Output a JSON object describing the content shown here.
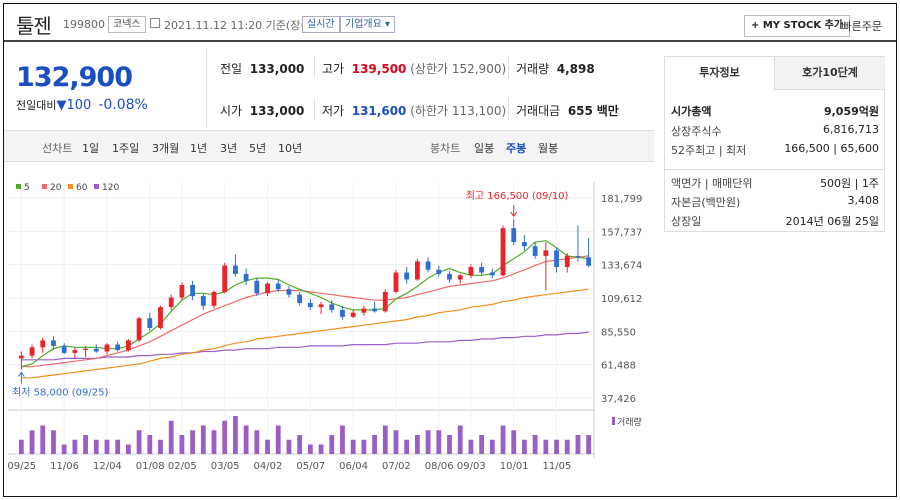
{
  "header": {
    "name": "툴젠",
    "code": "199800",
    "market": "코넥스",
    "datetime": "2021.11.12 11:20",
    "datetime_suffix": "기준(장중)",
    "realtime": "실시간",
    "company_overview": "기업개요 ▾",
    "mystock_btn": "+ MY STOCK 추가",
    "quick_order": "빠른주문"
  },
  "quote": {
    "price": "132,900",
    "change_label": "전일대비",
    "change_arrow": "▼",
    "change_value": "100",
    "change_pct": "-0.08%"
  },
  "info": {
    "prev_label": "전일",
    "prev": "133,000",
    "high_label": "고가",
    "high": "139,500",
    "upper_limit": "(상한가 152,900)",
    "vol_label": "거래량",
    "vol": "4,898",
    "open_label": "시가",
    "open": "133,000",
    "low_label": "저가",
    "low": "131,600",
    "lower_limit": "(하한가 113,100)",
    "amt_label": "거래대금",
    "amt": "655",
    "amt_unit": "백만"
  },
  "periods": {
    "chart_label": "선차트",
    "items": [
      "1일",
      "1주일",
      "3개월",
      "1년",
      "3년",
      "5년",
      "10년"
    ],
    "candle_label": "봉차트",
    "candle_items": [
      "일봉",
      "주봉",
      "월봉"
    ],
    "selected": "주봉"
  },
  "tabs": {
    "invest": "투자정보",
    "hoga": "호가10단계"
  },
  "invest_rows": [
    {
      "label": "시가총액",
      "value": "9,059억원"
    },
    {
      "label": "상장주식수",
      "value": "6,816,713"
    },
    {
      "label": "52주최고 | 최저",
      "value": "166,500 | 65,600"
    },
    {
      "label": "액면가 | 매매단위",
      "value": "500원 | 1주"
    },
    {
      "label": "자본금(백만원)",
      "value": "3,408"
    },
    {
      "label": "상장일",
      "value": "2014년 06월 25일"
    }
  ],
  "colors": {
    "up": "#e8242a",
    "down": "#2e6dd1",
    "ma5": "#4caf27",
    "ma20": "#ef6a6a",
    "ma60": "#f0901f",
    "ma120": "#9b5fc8",
    "volume": "#9a5fc6"
  },
  "chart_data": {
    "type": "candlestick",
    "legend": [
      "5",
      "20",
      "60",
      "120"
    ],
    "y_ticks": [
      "181,799",
      "157,737",
      "133,674",
      "109,612",
      "85,550",
      "61,488",
      "37,426"
    ],
    "ylim": [
      37426,
      181799
    ],
    "x_ticks": [
      "09/25",
      "11/06",
      "12/04",
      "01/08",
      "02/05",
      "03/05",
      "04/02",
      "05/07",
      "06/04",
      "07/02",
      "08/06",
      "09/03",
      "10/01",
      "11/05"
    ],
    "annotation_high": "최고 166,500 (09/10)",
    "annotation_low": "최저 58,000 (09/25)",
    "volume_label": "거래량",
    "candles": [
      [
        66000,
        71000,
        58000,
        68000
      ],
      [
        68000,
        76000,
        66000,
        74000
      ],
      [
        74000,
        81000,
        70000,
        79000
      ],
      [
        79000,
        82000,
        72000,
        75000
      ],
      [
        75000,
        77000,
        69000,
        70000
      ],
      [
        70000,
        74000,
        66000,
        72000
      ],
      [
        72000,
        75000,
        67000,
        73000
      ],
      [
        73000,
        76000,
        70000,
        71000
      ],
      [
        71000,
        77000,
        69000,
        76000
      ],
      [
        76000,
        78000,
        71000,
        72000
      ],
      [
        72000,
        80000,
        71000,
        79000
      ],
      [
        79000,
        96000,
        78000,
        95000
      ],
      [
        95000,
        99000,
        86000,
        88000
      ],
      [
        88000,
        104000,
        87000,
        103000
      ],
      [
        103000,
        112000,
        101000,
        110000
      ],
      [
        110000,
        121000,
        108000,
        119000
      ],
      [
        119000,
        122000,
        108000,
        111000
      ],
      [
        111000,
        113000,
        101000,
        104000
      ],
      [
        104000,
        115000,
        102000,
        114000
      ],
      [
        114000,
        135000,
        113000,
        133000
      ],
      [
        133000,
        141000,
        125000,
        127000
      ],
      [
        127000,
        131000,
        119000,
        122000
      ],
      [
        122000,
        124000,
        111000,
        113000
      ],
      [
        113000,
        121000,
        111000,
        120000
      ],
      [
        120000,
        123000,
        114000,
        116000
      ],
      [
        116000,
        118000,
        110000,
        112000
      ],
      [
        112000,
        114000,
        104000,
        106000
      ],
      [
        106000,
        109000,
        101000,
        103000
      ],
      [
        103000,
        107000,
        98000,
        105000
      ],
      [
        105000,
        108000,
        99000,
        101000
      ],
      [
        101000,
        104000,
        94000,
        96000
      ],
      [
        96000,
        101000,
        95000,
        99000
      ],
      [
        99000,
        104000,
        97000,
        102000
      ],
      [
        102000,
        107000,
        99000,
        100000
      ],
      [
        100000,
        116000,
        99000,
        114000
      ],
      [
        114000,
        130000,
        113000,
        128000
      ],
      [
        128000,
        132000,
        120000,
        123000
      ],
      [
        123000,
        138000,
        122000,
        136000
      ],
      [
        136000,
        139000,
        128000,
        130000
      ],
      [
        130000,
        133000,
        125000,
        127000
      ],
      [
        127000,
        129000,
        121000,
        123000
      ],
      [
        123000,
        127000,
        120000,
        126000
      ],
      [
        126000,
        134000,
        124000,
        132000
      ],
      [
        132000,
        135000,
        126000,
        128000
      ],
      [
        128000,
        131000,
        124000,
        126000
      ],
      [
        126000,
        162000,
        125000,
        160000
      ],
      [
        160000,
        166500,
        148000,
        150000
      ],
      [
        150000,
        155000,
        144000,
        147000
      ],
      [
        147000,
        150000,
        138000,
        140000
      ],
      [
        140000,
        150000,
        115000,
        144000
      ],
      [
        144000,
        146000,
        128000,
        132000
      ],
      [
        132000,
        142000,
        128000,
        140000
      ],
      [
        140000,
        162000,
        136000,
        139000
      ],
      [
        139000,
        153000,
        132000,
        132900
      ]
    ],
    "ma5": [
      60,
      62,
      68,
      73,
      75,
      74,
      74,
      74,
      73,
      73,
      75,
      80,
      85,
      91,
      100,
      108,
      113,
      113,
      112,
      114,
      119,
      122,
      124,
      124,
      123,
      119,
      116,
      113,
      110,
      106,
      103,
      101,
      101,
      101,
      102,
      109,
      113,
      118,
      124,
      128,
      131,
      128,
      126,
      126,
      127,
      133,
      138,
      143,
      150,
      151,
      146,
      140,
      139,
      138
    ],
    "ma20": [
      60,
      60,
      61,
      62,
      63,
      64,
      65,
      66,
      68,
      70,
      72,
      75,
      78,
      82,
      86,
      90,
      94,
      98,
      101,
      104,
      107,
      110,
      112,
      114,
      115,
      115,
      115,
      114,
      113,
      112,
      111,
      110,
      109,
      108,
      108,
      109,
      110,
      112,
      114,
      116,
      118,
      119,
      120,
      121,
      122,
      124,
      127,
      130,
      133,
      136,
      137,
      138,
      139,
      140
    ],
    "ma60": [
      52,
      52,
      53,
      54,
      55,
      56,
      57,
      58,
      59,
      60,
      61,
      62,
      64,
      66,
      67,
      69,
      70,
      72,
      73,
      75,
      77,
      78,
      80,
      81,
      82,
      83,
      84,
      85,
      86,
      87,
      88,
      89,
      90,
      91,
      92,
      93,
      94,
      96,
      97,
      99,
      100,
      101,
      103,
      104,
      105,
      107,
      108,
      110,
      111,
      112,
      113,
      114,
      115,
      116
    ],
    "ma120": [
      65,
      65,
      65,
      65,
      66,
      66,
      66,
      66,
      67,
      67,
      67,
      68,
      68,
      69,
      69,
      70,
      70,
      71,
      71,
      72,
      72,
      73,
      73,
      73,
      74,
      74,
      74,
      75,
      75,
      75,
      75,
      76,
      76,
      76,
      76,
      77,
      77,
      77,
      78,
      78,
      78,
      79,
      79,
      80,
      80,
      81,
      81,
      82,
      82,
      83,
      83,
      84,
      84,
      85
    ],
    "volumes": [
      3,
      5,
      6,
      5,
      2,
      3,
      4,
      3,
      3,
      3,
      2,
      5,
      4,
      3,
      7,
      4,
      5,
      6,
      5,
      7,
      8,
      6,
      5,
      3,
      6,
      3,
      4,
      2,
      2,
      4,
      6,
      3,
      3,
      4,
      6,
      5,
      3,
      4,
      5,
      5,
      4,
      6,
      3,
      4,
      3,
      6,
      5,
      3,
      4,
      3,
      3,
      3,
      4,
      4
    ]
  }
}
